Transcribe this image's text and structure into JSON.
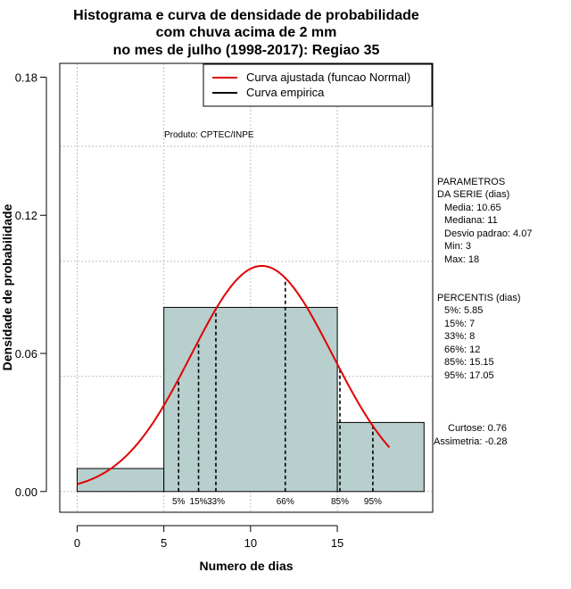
{
  "chart_data": {
    "type": "bar",
    "title": [
      "Histograma e curva de densidade de probabilidade",
      "com chuva acima de 2 mm",
      "no mes de julho (1998-2017): Regiao 35"
    ],
    "xlabel": "Numero de dias",
    "ylabel": "Densidade de probabilidade",
    "xlim": [
      -1,
      20.5
    ],
    "ylim": [
      -0.009,
      0.186
    ],
    "x_ticks": [
      0,
      5,
      10,
      15
    ],
    "y_ticks": [
      0.0,
      0.06,
      0.12,
      0.18
    ],
    "x_tick_labels": [
      "0",
      "5",
      "10",
      "15"
    ],
    "y_tick_labels": [
      "0.00",
      "0.06",
      "0.12",
      "0.18"
    ],
    "grid": true,
    "bins": [
      {
        "x0": 0,
        "x1": 5,
        "density": 0.01
      },
      {
        "x0": 5,
        "x1": 15,
        "density": 0.08
      },
      {
        "x0": 15,
        "x1": 20,
        "density": 0.03
      }
    ],
    "bar_color": "#b7cfcd",
    "curve_color": "#e00000",
    "fitted_curve": {
      "name": "Curva ajustada (funcao Normal)",
      "mean": 10.65,
      "sd": 4.07,
      "x_range": [
        0,
        18
      ]
    },
    "legend": [
      {
        "label": "Curva ajustada (funcao Normal)",
        "color": "#e00000"
      },
      {
        "label": "Curva empirica",
        "color": "#000000"
      }
    ],
    "legend_position": "top-right",
    "percentile_lines": [
      {
        "label": "5%",
        "x": 5.85
      },
      {
        "label": "15%",
        "x": 7
      },
      {
        "label": "33%",
        "x": 8
      },
      {
        "label": "66%",
        "x": 12
      },
      {
        "label": "85%",
        "x": 15.15
      },
      {
        "label": "95%",
        "x": 17.05
      }
    ],
    "product_note": "Produto: CPTEC/INPE",
    "side_panel": {
      "params_title": [
        "PARAMETROS",
        "DA SERIE (dias)"
      ],
      "params": [
        "Media: 10.65",
        "Mediana: 11",
        "Desvio padrao: 4.07",
        "Min: 3",
        "Max: 18"
      ],
      "percentis_title": "PERCENTIS (dias)",
      "percentis": [
        "5%: 5.85",
        "15%: 7",
        "33%: 8",
        "66%: 12",
        "85%: 15.15",
        "95%: 17.05"
      ],
      "stats": [
        "Curtose: 0.76",
        "Assimetria: -0.28"
      ]
    }
  }
}
